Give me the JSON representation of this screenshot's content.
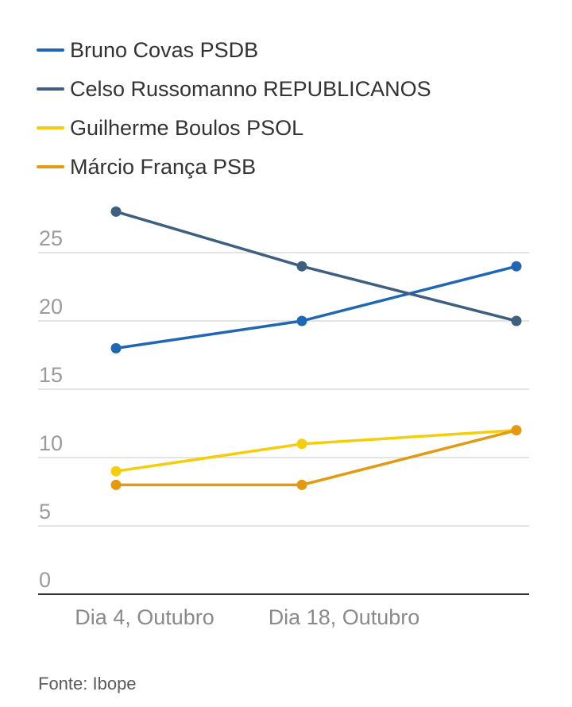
{
  "chart_data": {
    "type": "line",
    "x": [
      "Dia 4, Outubro",
      "Dia 18, Outubro",
      ""
    ],
    "series": [
      {
        "name": "Bruno Covas PSDB",
        "color": "#1f66b3",
        "values": [
          18,
          20,
          24
        ]
      },
      {
        "name": "Celso Russomanno REPUBLICANOS",
        "color": "#3e5f80",
        "values": [
          28,
          24,
          20
        ]
      },
      {
        "name": "Guilherme Boulos PSOL",
        "color": "#f5cd0c",
        "values": [
          9,
          11,
          12
        ]
      },
      {
        "name": "Márcio França PSB",
        "color": "#e39a12",
        "values": [
          8,
          8,
          12
        ]
      }
    ],
    "y_ticks": [
      "0",
      "5",
      "10",
      "15",
      "20",
      "25"
    ],
    "x_tick_labels": [
      "Dia 4, Outubro",
      "Dia 18, Outubro"
    ],
    "ylim": [
      0,
      30
    ],
    "grid": true,
    "legend_position": "top-left",
    "source": "Fonte: Ibope"
  }
}
